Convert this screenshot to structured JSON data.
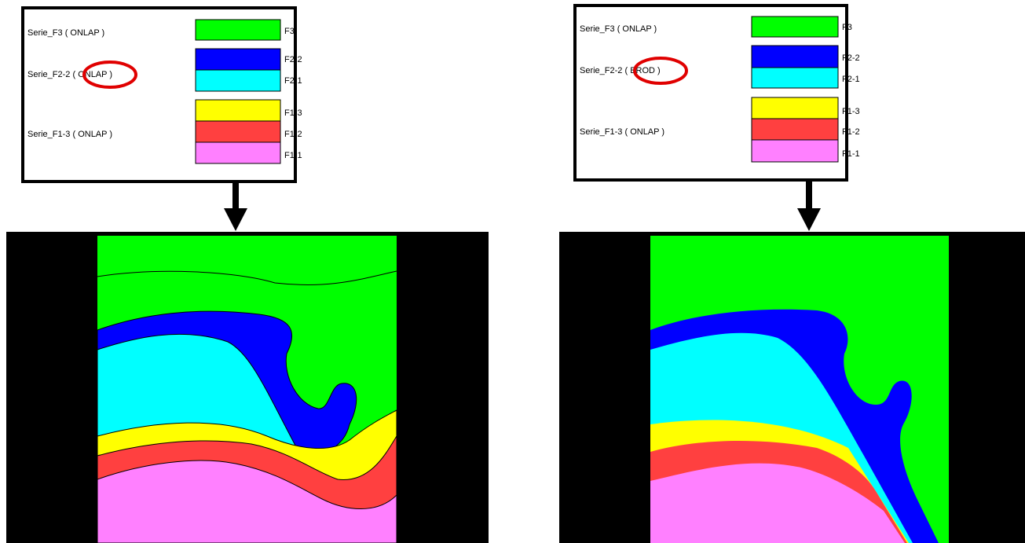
{
  "panels": [
    {
      "series": [
        "Serie_F3 ( ONLAP )",
        "Serie_F2-2 ( ONLAP )",
        "Serie_F1-3 ( ONLAP )"
      ],
      "layers": [
        "F3",
        "F2-2",
        "F2-1",
        "F1-3",
        "F1-2",
        "F1-1"
      ]
    },
    {
      "series": [
        "Serie_F3 ( ONLAP )",
        "Serie_F2-2 ( EROD )",
        "Serie_F1-3 ( ONLAP )"
      ],
      "layers": [
        "F3",
        "F2-2",
        "F2-1",
        "F1-3",
        "F1-2",
        "F1-1"
      ]
    }
  ]
}
